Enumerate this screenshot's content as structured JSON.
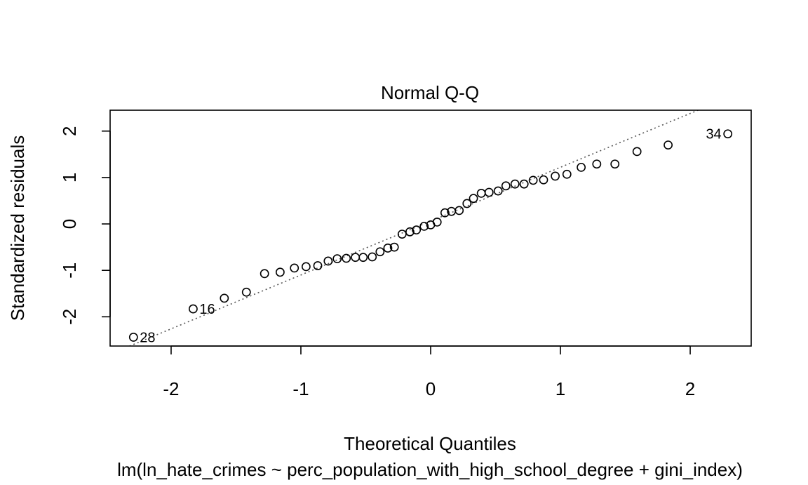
{
  "chart_data": {
    "type": "scatter",
    "title": "Normal Q-Q",
    "xlabel": "Theoretical Quantiles",
    "ylabel": "Standardized residuals",
    "subtitle": "lm(ln_hate_crimes ~ perc_population_with_high_school_degree + gini_index)",
    "xlim": [
      -2.47,
      2.47
    ],
    "ylim": [
      -2.63,
      2.45
    ],
    "x_ticks": [
      -2,
      -1,
      0,
      1,
      2
    ],
    "y_ticks": [
      -2,
      -1,
      0,
      1,
      2
    ],
    "grid": false,
    "reference_line": {
      "style": "dotted",
      "intercept": 0.06,
      "slope": 1.16
    },
    "points": [
      {
        "x": -2.29,
        "y": -2.44,
        "label": "28"
      },
      {
        "x": -1.83,
        "y": -1.83,
        "label": "16"
      },
      {
        "x": -1.59,
        "y": -1.6
      },
      {
        "x": -1.42,
        "y": -1.47
      },
      {
        "x": -1.28,
        "y": -1.07
      },
      {
        "x": -1.16,
        "y": -1.04
      },
      {
        "x": -1.05,
        "y": -0.95
      },
      {
        "x": -0.96,
        "y": -0.92
      },
      {
        "x": -0.87,
        "y": -0.9
      },
      {
        "x": -0.79,
        "y": -0.8
      },
      {
        "x": -0.72,
        "y": -0.75
      },
      {
        "x": -0.65,
        "y": -0.74
      },
      {
        "x": -0.58,
        "y": -0.72
      },
      {
        "x": -0.52,
        "y": -0.72
      },
      {
        "x": -0.45,
        "y": -0.71
      },
      {
        "x": -0.39,
        "y": -0.6
      },
      {
        "x": -0.33,
        "y": -0.52
      },
      {
        "x": -0.28,
        "y": -0.5
      },
      {
        "x": -0.22,
        "y": -0.22
      },
      {
        "x": -0.16,
        "y": -0.17
      },
      {
        "x": -0.11,
        "y": -0.13
      },
      {
        "x": -0.05,
        "y": -0.05
      },
      {
        "x": 0.0,
        "y": -0.02
      },
      {
        "x": 0.05,
        "y": 0.04
      },
      {
        "x": 0.11,
        "y": 0.24
      },
      {
        "x": 0.16,
        "y": 0.27
      },
      {
        "x": 0.22,
        "y": 0.29
      },
      {
        "x": 0.28,
        "y": 0.44
      },
      {
        "x": 0.33,
        "y": 0.55
      },
      {
        "x": 0.39,
        "y": 0.66
      },
      {
        "x": 0.45,
        "y": 0.68
      },
      {
        "x": 0.52,
        "y": 0.71
      },
      {
        "x": 0.58,
        "y": 0.82
      },
      {
        "x": 0.65,
        "y": 0.86
      },
      {
        "x": 0.72,
        "y": 0.86
      },
      {
        "x": 0.79,
        "y": 0.94
      },
      {
        "x": 0.87,
        "y": 0.95
      },
      {
        "x": 0.96,
        "y": 1.03
      },
      {
        "x": 1.05,
        "y": 1.07
      },
      {
        "x": 1.16,
        "y": 1.22
      },
      {
        "x": 1.28,
        "y": 1.29
      },
      {
        "x": 1.42,
        "y": 1.29
      },
      {
        "x": 1.59,
        "y": 1.56
      },
      {
        "x": 1.83,
        "y": 1.7
      },
      {
        "x": 2.29,
        "y": 1.94,
        "label": "34"
      }
    ]
  }
}
